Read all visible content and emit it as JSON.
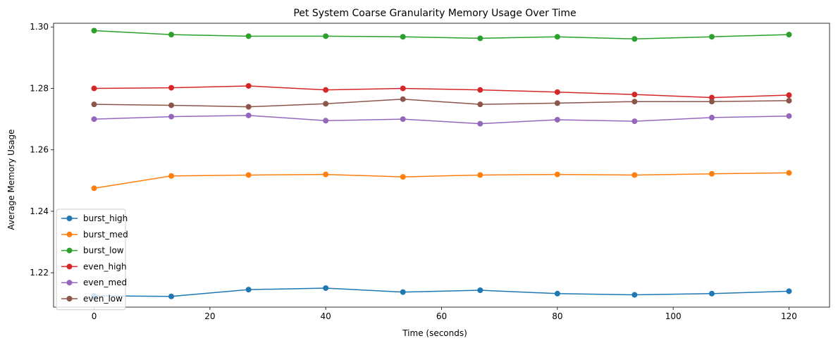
{
  "chart_data": {
    "type": "line",
    "title": "Pet System Coarse Granularity Memory Usage Over Time",
    "xlabel": "Time (seconds)",
    "ylabel": "Average Memory Usage",
    "xlim": [
      -7,
      127
    ],
    "ylim": [
      1.2088,
      1.3012
    ],
    "xticks": [
      0,
      20,
      40,
      60,
      80,
      100,
      120
    ],
    "xtick_labels": [
      "0",
      "20",
      "40",
      "60",
      "80",
      "100",
      "120"
    ],
    "yticks": [
      1.22,
      1.24,
      1.26,
      1.28,
      1.3
    ],
    "ytick_labels": [
      "1.22",
      "1.24",
      "1.26",
      "1.28",
      "1.30"
    ],
    "grid": false,
    "legend_position": "lower-left",
    "x": [
      0,
      13.33,
      26.67,
      40,
      53.33,
      66.67,
      80,
      93.33,
      106.67,
      120
    ],
    "series": [
      {
        "name": "burst_high",
        "color": "#1f77b4",
        "values": [
          1.2125,
          1.2123,
          1.2145,
          1.215,
          1.2137,
          1.2143,
          1.2132,
          1.2128,
          1.2132,
          1.214
        ]
      },
      {
        "name": "burst_med",
        "color": "#ff7f0e",
        "values": [
          1.2475,
          1.2515,
          1.2518,
          1.252,
          1.2512,
          1.2518,
          1.252,
          1.2518,
          1.2522,
          1.2525
        ]
      },
      {
        "name": "burst_low",
        "color": "#2ca02c",
        "values": [
          1.2988,
          1.2975,
          1.297,
          1.297,
          1.2968,
          1.2963,
          1.2968,
          1.2961,
          1.2968,
          1.2975
        ]
      },
      {
        "name": "even_high",
        "color": "#d62728",
        "values": [
          1.28,
          1.2802,
          1.2808,
          1.2795,
          1.28,
          1.2795,
          1.2788,
          1.278,
          1.277,
          1.2778
        ]
      },
      {
        "name": "even_med",
        "color": "#9467bd",
        "values": [
          1.27,
          1.2708,
          1.2712,
          1.2695,
          1.27,
          1.2685,
          1.2698,
          1.2693,
          1.2705,
          1.271
        ]
      },
      {
        "name": "even_low",
        "color": "#8c564b",
        "values": [
          1.2748,
          1.2745,
          1.274,
          1.275,
          1.2765,
          1.2748,
          1.2752,
          1.2757,
          1.2757,
          1.276
        ]
      }
    ]
  }
}
